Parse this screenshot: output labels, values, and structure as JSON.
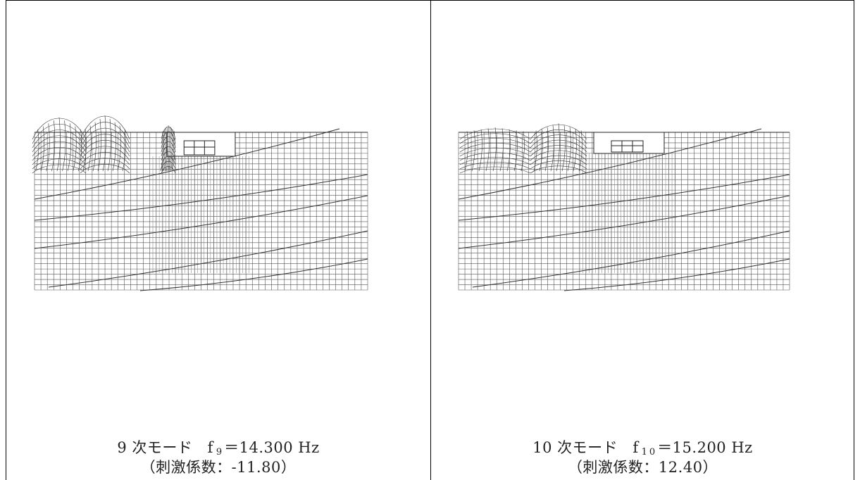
{
  "panels": [
    {
      "mode_label": "9 次モード",
      "freq_symbol": "f",
      "freq_sub": "9",
      "freq_value": "＝14.300 Hz",
      "participation": "（刺激係数：-11.80）",
      "mesh_color": "#555555",
      "deform_color": "#333333"
    },
    {
      "mode_label": "10 次モード",
      "freq_symbol": "f",
      "freq_sub": "10",
      "freq_value": "＝15.200 Hz",
      "participation": "（刺激係数：12.40）",
      "mesh_color": "#555555",
      "deform_color": "#333333"
    }
  ]
}
